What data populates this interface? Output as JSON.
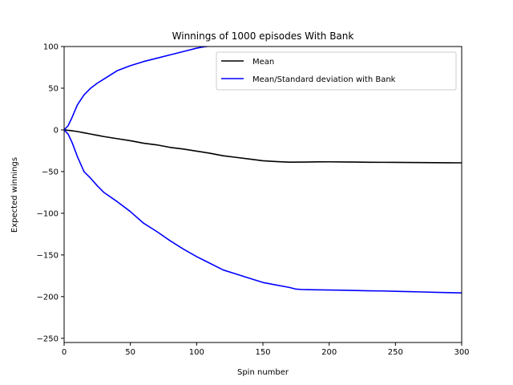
{
  "chart_data": {
    "type": "line",
    "title": "Winnings of 1000 episodes With Bank",
    "xlabel": "Spin number",
    "ylabel": "Expected winnings",
    "xlim": [
      0,
      300
    ],
    "ylim": [
      -255,
      100
    ],
    "xticks": [
      0,
      50,
      100,
      150,
      200,
      250,
      300
    ],
    "yticks": [
      -250,
      -200,
      -150,
      -100,
      -50,
      0,
      50,
      100
    ],
    "grid": false,
    "legend_position": "upper right",
    "series": [
      {
        "name": "Mean",
        "color": "#000000",
        "x": [
          0,
          5,
          10,
          15,
          20,
          25,
          30,
          40,
          50,
          60,
          70,
          80,
          90,
          100,
          110,
          120,
          130,
          140,
          150,
          160,
          170,
          180,
          190,
          200,
          210,
          220,
          230,
          240,
          250,
          260,
          270,
          280,
          290,
          300
        ],
        "y": [
          0,
          -0.8,
          -2,
          -3.5,
          -5,
          -6.5,
          -8,
          -10.5,
          -13,
          -16,
          -18,
          -21,
          -23,
          -25.5,
          -28,
          -31,
          -33,
          -35,
          -37,
          -38,
          -38.7,
          -38.6,
          -38.4,
          -38.3,
          -38.5,
          -38.6,
          -38.8,
          -38.9,
          -39,
          -39.1,
          -39.2,
          -39.3,
          -39.4,
          -39.5
        ]
      },
      {
        "name": "Mean/Standard deviation with Bank",
        "color": "#0000ff",
        "x": [
          0,
          3,
          6,
          10,
          15,
          20,
          25,
          30,
          40,
          50,
          60,
          70,
          80,
          90,
          100,
          105,
          110,
          115
        ],
        "y": [
          0,
          5,
          15,
          30,
          42,
          50,
          56,
          61,
          71,
          77,
          82,
          86,
          90,
          94,
          98,
          99.5,
          100.5,
          101.5
        ]
      },
      {
        "name": "",
        "color": "#0000ff",
        "x": [
          0,
          3,
          6,
          10,
          15,
          20,
          25,
          30,
          40,
          50,
          60,
          70,
          80,
          90,
          100,
          110,
          120,
          130,
          140,
          150,
          160,
          170,
          175,
          180,
          190,
          200,
          210,
          220,
          230,
          240,
          250,
          260,
          270,
          280,
          290,
          300
        ],
        "y": [
          0,
          -5,
          -15,
          -32,
          -50,
          -58,
          -67,
          -75,
          -86,
          -98,
          -112,
          -122,
          -133,
          -143,
          -152,
          -160,
          -168,
          -173,
          -178,
          -183,
          -186,
          -189,
          -191,
          -191.5,
          -191.8,
          -192,
          -192.3,
          -192.6,
          -193,
          -193.2,
          -193.6,
          -194,
          -194.4,
          -194.8,
          -195.2,
          -195.5
        ]
      }
    ]
  }
}
